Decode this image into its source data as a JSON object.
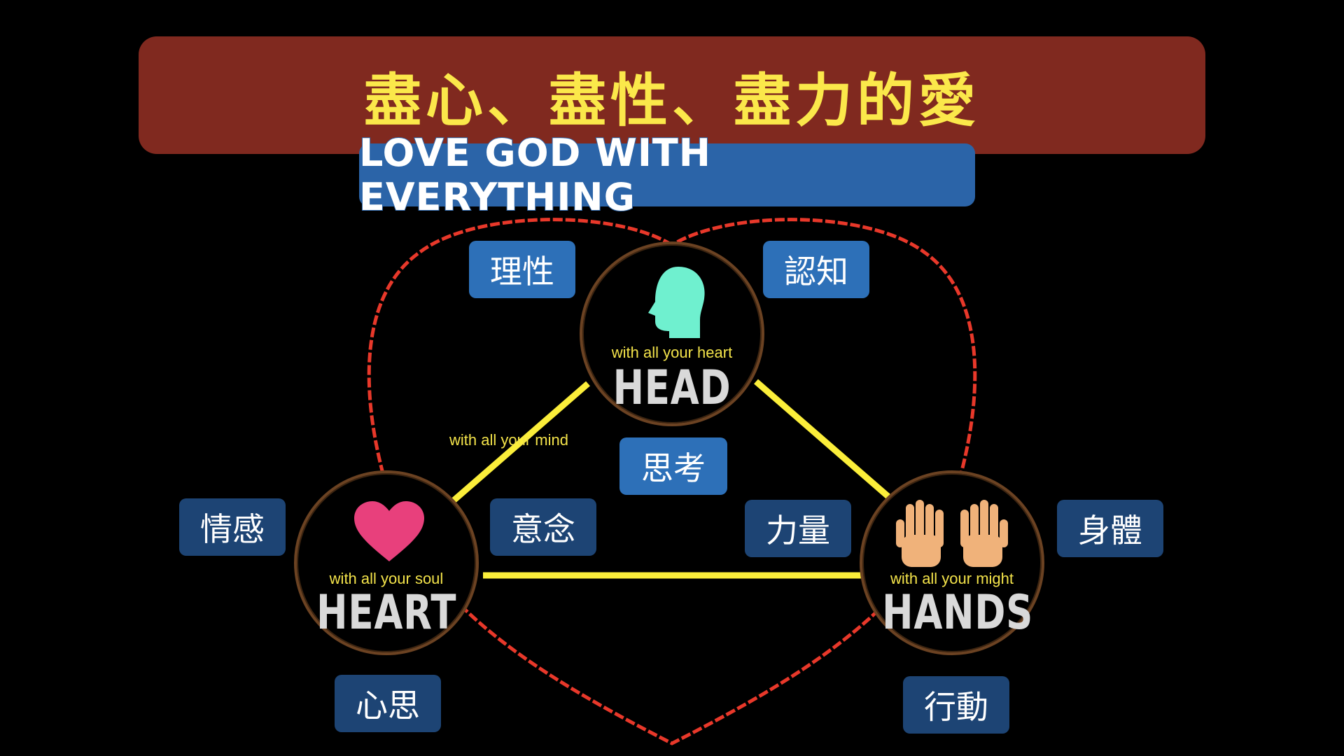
{
  "title": "盡心、盡性、盡力的愛",
  "subtitle": "Love God with Everything",
  "nodes": {
    "head": {
      "label": "HEAD",
      "caption": "with all your heart",
      "icon": "head-icon"
    },
    "heart": {
      "label": "HEART",
      "caption": "with all your soul",
      "icon": "heart-icon"
    },
    "hands": {
      "label": "HANDS",
      "caption": "with all your might",
      "icon": "raised-hands-icon"
    }
  },
  "edge_label": "with all your mind",
  "tags": {
    "reason": "理性",
    "cognition": "認知",
    "thinking": "思考",
    "emotion": "情感",
    "intention": "意念",
    "strength": "力量",
    "body": "身體",
    "mind": "心思",
    "action": "行動"
  },
  "colors": {
    "title_banner": "#80291f",
    "title_text": "#fbe84a",
    "subtitle_banner": "#2b64a8",
    "heart_outline": "#e8382a",
    "triangle": "#fbee3a",
    "tag_light": "#2d70b8",
    "tag_dark": "#1d4474",
    "head_icon": "#6ff0cf",
    "heart_icon": "#e8407c",
    "hands_icon": "#f0b27a"
  }
}
